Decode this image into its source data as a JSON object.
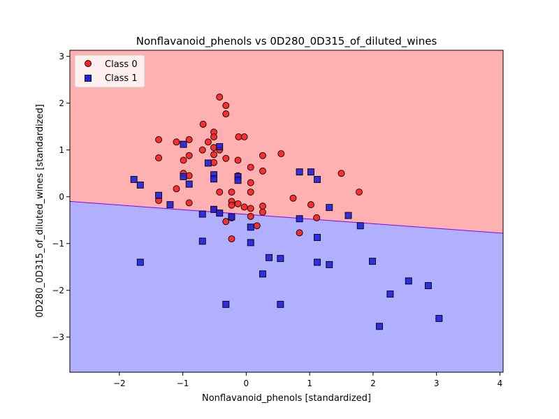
{
  "chart_data": {
    "type": "scatter",
    "title": "Nonflavanoid_phenols vs 0D280_0D315_of_diluted_wines",
    "xlabel": "Nonflavanoid_phenols [standardized]",
    "ylabel": "0D280_0D315_of_diluted_wines [standardized]",
    "xlim": [
      -2.78,
      4.05
    ],
    "ylim": [
      -3.75,
      3.13
    ],
    "xticks": [
      -2,
      -1,
      0,
      1,
      2,
      3,
      4
    ],
    "yticks": [
      -3,
      -2,
      -1,
      0,
      1,
      2,
      3
    ],
    "xtick_labels": [
      "−2",
      "−1",
      "0",
      "1",
      "2",
      "3",
      "4"
    ],
    "ytick_labels": [
      "−3",
      "−2",
      "−1",
      "0",
      "1",
      "2",
      "3"
    ],
    "grid": false,
    "legend_position": "top-left",
    "decision_boundary": {
      "x": [
        -2.78,
        4.05
      ],
      "y": [
        -0.1,
        -0.78
      ],
      "upper_region_color": "#ffb0b0",
      "lower_region_color": "#b0b0ff",
      "line_color": "#8000ff"
    },
    "series": [
      {
        "name": "Class 0",
        "marker": "circle",
        "color": "#ff2020",
        "points": [
          [
            -0.42,
            2.13
          ],
          [
            -0.32,
            1.95
          ],
          [
            -0.32,
            1.77
          ],
          [
            -0.68,
            1.55
          ],
          [
            -0.51,
            1.38
          ],
          [
            -0.51,
            1.28
          ],
          [
            -0.12,
            1.28
          ],
          [
            -0.03,
            1.28
          ],
          [
            -1.38,
            1.22
          ],
          [
            -1.1,
            1.17
          ],
          [
            -0.6,
            1.17
          ],
          [
            -0.9,
            1.22
          ],
          [
            -0.51,
            1.05
          ],
          [
            -0.69,
            1.0
          ],
          [
            -0.42,
            1.0
          ],
          [
            -0.51,
            0.9
          ],
          [
            0.26,
            0.88
          ],
          [
            0.55,
            0.92
          ],
          [
            -1.38,
            0.83
          ],
          [
            -0.9,
            0.88
          ],
          [
            -0.99,
            0.78
          ],
          [
            -0.32,
            0.82
          ],
          [
            -0.13,
            0.78
          ],
          [
            -0.51,
            0.73
          ],
          [
            0.07,
            0.63
          ],
          [
            -0.99,
            0.5
          ],
          [
            -0.9,
            0.45
          ],
          [
            -0.13,
            0.45
          ],
          [
            0.26,
            0.55
          ],
          [
            1.5,
            0.5
          ],
          [
            0.07,
            0.3
          ],
          [
            -1.1,
            0.17
          ],
          [
            -0.42,
            0.1
          ],
          [
            -0.23,
            0.1
          ],
          [
            0.07,
            0.1
          ],
          [
            1.78,
            0.1
          ],
          [
            0.74,
            -0.03
          ],
          [
            -1.38,
            -0.08
          ],
          [
            -0.9,
            -0.13
          ],
          [
            -0.23,
            -0.1
          ],
          [
            -0.13,
            -0.15
          ],
          [
            -0.23,
            -0.18
          ],
          [
            0.26,
            -0.2
          ],
          [
            -0.03,
            -0.22
          ],
          [
            0.07,
            -0.25
          ],
          [
            1.02,
            -0.17
          ],
          [
            -0.51,
            -0.27
          ],
          [
            -0.42,
            -0.35
          ],
          [
            0.26,
            -0.33
          ],
          [
            -0.23,
            -0.45
          ],
          [
            0.07,
            -0.42
          ],
          [
            1.11,
            -0.45
          ],
          [
            -0.32,
            -0.53
          ],
          [
            0.17,
            -0.62
          ],
          [
            0.84,
            -0.77
          ],
          [
            -0.23,
            -0.9
          ]
        ]
      },
      {
        "name": "Class 1",
        "marker": "square",
        "color": "#2020e0",
        "points": [
          [
            -0.99,
            1.12
          ],
          [
            -0.42,
            1.07
          ],
          [
            -0.6,
            0.72
          ],
          [
            0.84,
            0.53
          ],
          [
            1.02,
            0.53
          ],
          [
            -0.51,
            0.47
          ],
          [
            -0.99,
            0.43
          ],
          [
            -0.13,
            0.43
          ],
          [
            -0.51,
            0.38
          ],
          [
            -0.13,
            0.35
          ],
          [
            1.12,
            0.37
          ],
          [
            -1.77,
            0.37
          ],
          [
            -1.67,
            0.25
          ],
          [
            -0.9,
            0.27
          ],
          [
            -1.38,
            0.03
          ],
          [
            -1.2,
            -0.17
          ],
          [
            1.31,
            -0.23
          ],
          [
            -0.51,
            -0.27
          ],
          [
            -0.42,
            -0.35
          ],
          [
            -0.69,
            -0.37
          ],
          [
            1.61,
            -0.4
          ],
          [
            -0.23,
            -0.43
          ],
          [
            0.84,
            -0.47
          ],
          [
            0.07,
            -0.65
          ],
          [
            1.8,
            -0.62
          ],
          [
            1.12,
            -0.87
          ],
          [
            -0.69,
            -0.95
          ],
          [
            0.07,
            -0.98
          ],
          [
            0.36,
            -1.3
          ],
          [
            0.54,
            -1.32
          ],
          [
            1.12,
            -1.4
          ],
          [
            1.31,
            -1.45
          ],
          [
            1.99,
            -1.38
          ],
          [
            -1.67,
            -1.4
          ],
          [
            0.26,
            -1.65
          ],
          [
            2.56,
            -1.8
          ],
          [
            2.87,
            -1.9
          ],
          [
            2.27,
            -2.08
          ],
          [
            -0.32,
            -2.3
          ],
          [
            0.54,
            -2.3
          ],
          [
            3.04,
            -2.6
          ],
          [
            2.1,
            -2.77
          ]
        ]
      }
    ]
  }
}
